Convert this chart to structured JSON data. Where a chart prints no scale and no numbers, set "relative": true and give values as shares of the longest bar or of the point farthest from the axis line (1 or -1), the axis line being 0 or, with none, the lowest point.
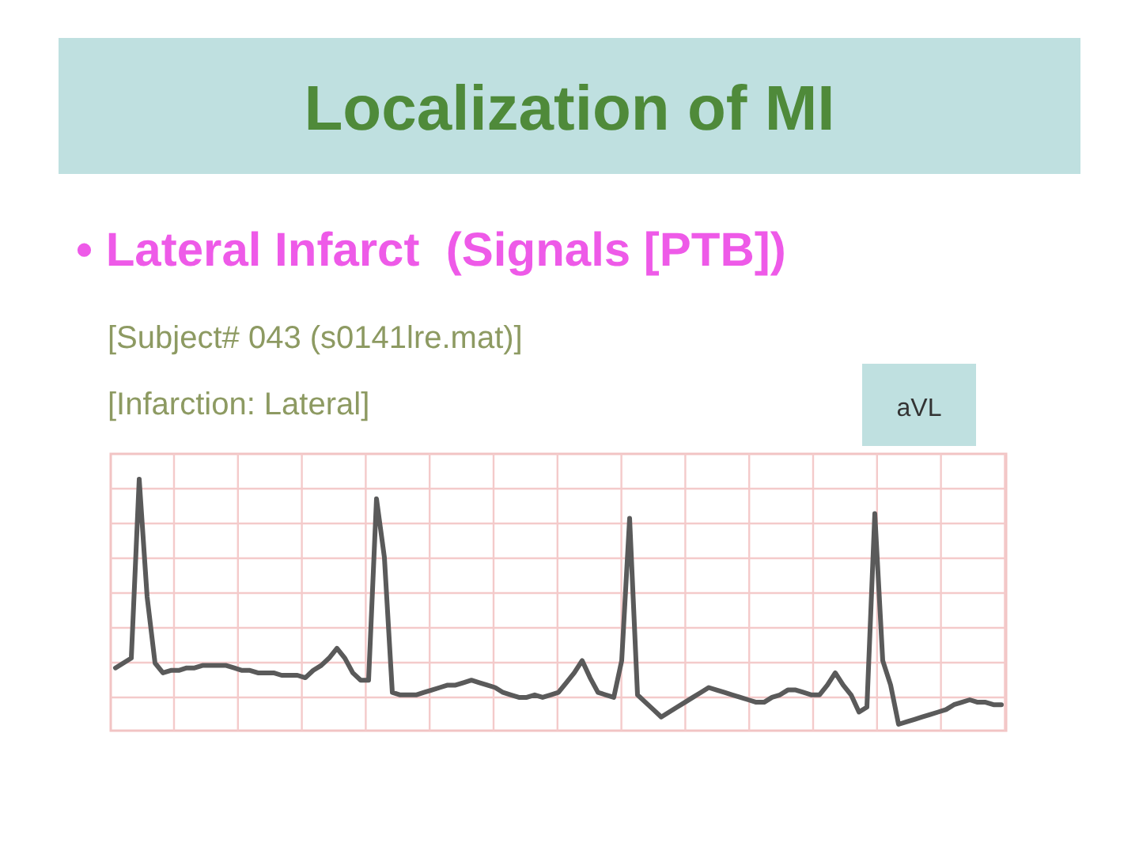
{
  "chart_data": {
    "type": "line",
    "relative": true,
    "title": "Localization of MI",
    "subtitle": "• Lateral Infarct  (Signals [PTB])",
    "annotations": [
      "[Subject# 043 (s0141lre.mat)]",
      "[Infarction: Lateral]",
      "aVL"
    ],
    "grid": true,
    "marker": "none",
    "line_style": "solid",
    "categories": [
      null,
      null,
      null,
      null,
      null,
      null,
      null,
      null,
      null,
      null,
      null,
      null,
      null,
      null,
      null,
      null,
      null,
      null,
      null,
      null,
      null,
      null,
      null,
      null,
      null,
      null,
      null,
      null,
      null,
      null,
      null,
      null,
      null,
      null,
      null,
      null,
      null,
      null,
      null,
      null,
      null,
      null,
      null,
      null,
      null,
      null,
      null,
      null,
      null,
      null,
      null,
      null,
      null,
      null,
      null,
      null,
      null,
      null,
      null,
      null,
      null,
      null,
      null,
      null,
      null,
      null,
      null,
      null,
      null,
      null,
      null,
      null,
      null,
      null,
      null,
      null,
      null,
      null,
      null,
      null,
      null,
      null,
      null,
      null,
      null,
      null,
      null,
      null,
      null,
      null,
      null,
      null,
      null,
      null,
      null,
      null,
      null,
      null,
      null,
      null,
      null,
      null,
      null,
      null,
      null,
      null,
      null,
      null,
      null,
      null,
      null,
      null,
      null
    ],
    "series": [
      {
        "color": "#5a5a5a",
        "values": [
          0.23,
          0.25,
          0.27,
          1,
          0.52,
          0.25,
          0.21,
          0.22,
          0.22,
          0.23,
          0.23,
          0.24,
          0.24,
          0.24,
          0.24,
          0.23,
          0.22,
          0.22,
          0.21,
          0.21,
          0.21,
          0.2,
          0.2,
          0.2,
          0.19,
          0.22,
          0.24,
          0.27,
          0.31,
          0.27,
          0.21,
          0.18,
          0.18,
          0.92,
          0.68,
          0.13,
          0.12,
          0.12,
          0.12,
          0.13,
          0.14,
          0.15,
          0.16,
          0.16,
          0.17,
          0.18,
          0.17,
          0.16,
          0.15,
          0.13,
          0.12,
          0.11,
          0.11,
          0.12,
          0.11,
          0.12,
          0.13,
          0.17,
          0.21,
          0.26,
          0.19,
          0.13,
          0.12,
          0.11,
          0.26,
          0.84,
          0.12,
          0.09,
          0.06,
          0.03,
          0.05,
          0.07,
          0.09,
          0.11,
          0.13,
          0.15,
          0.14,
          0.13,
          0.12,
          0.11,
          0.1,
          0.09,
          0.09,
          0.11,
          0.12,
          0.14,
          0.14,
          0.13,
          0.12,
          0.12,
          0.16,
          0.21,
          0.16,
          0.12,
          0.05,
          0.07,
          0.86,
          0.26,
          0.16,
          0,
          0.01,
          0.02,
          0.03,
          0.04,
          0.05,
          0.06,
          0.08,
          0.09,
          0.1,
          0.09,
          0.09,
          0.08,
          0.08
        ]
      }
    ]
  }
}
